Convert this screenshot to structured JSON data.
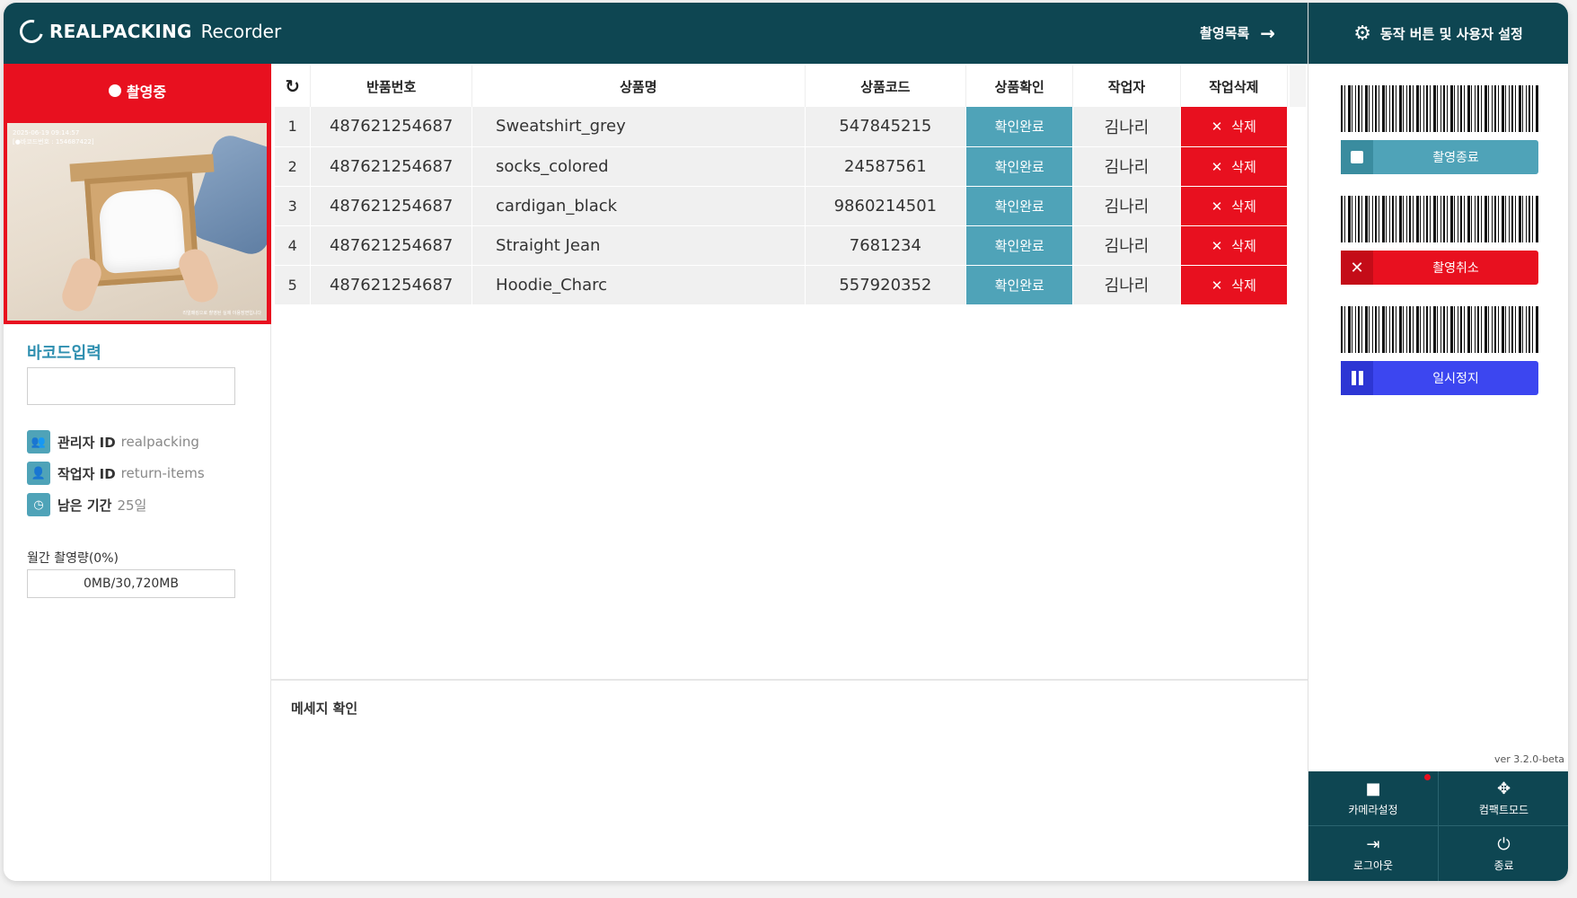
{
  "header": {
    "brand": "REALPACKING",
    "brand_sub": "Recorder",
    "rec_list_label": "촬영목록",
    "rec_list_arrow": "→"
  },
  "left": {
    "status_label": "촬영중",
    "cam_timestamp": "2025-06-19 09:14:57",
    "cam_barcode": "[●바코드번호 : 154687422]",
    "cam_footer": "리얼패킹으로 촬영된 실제 이용장면입니다",
    "barcode_label": "바코드입력",
    "barcode_value": "",
    "admin_key": "관리자 ID",
    "admin_val": "realpacking",
    "worker_key": "작업자 ID",
    "worker_val": "return-items",
    "remain_key": "남은 기간",
    "remain_val": "25일",
    "usage_label": "월간 촬영량(0%)",
    "usage_value": "0MB/30,720MB",
    "usage_percent": 0
  },
  "table": {
    "refresh_icon": "↻",
    "headers": {
      "ret": "반품번호",
      "name": "상품명",
      "code": "상품코드",
      "chk": "상품확인",
      "wrk": "작업자",
      "del": "작업삭제"
    },
    "rows": [
      {
        "num": "1",
        "ret": "487621254687",
        "name": "Sweatshirt_grey",
        "code": "547845215",
        "chk": "확인완료",
        "wrk": "김나리",
        "del": "삭제",
        "x": "✕"
      },
      {
        "num": "2",
        "ret": "487621254687",
        "name": "socks_colored",
        "code": "24587561",
        "chk": "확인완료",
        "wrk": "김나리",
        "del": "삭제",
        "x": "✕"
      },
      {
        "num": "3",
        "ret": "487621254687",
        "name": "cardigan_black",
        "code": "9860214501",
        "chk": "확인완료",
        "wrk": "김나리",
        "del": "삭제",
        "x": "✕"
      },
      {
        "num": "4",
        "ret": "487621254687",
        "name": "Straight Jean",
        "code": "7681234",
        "chk": "확인완료",
        "wrk": "김나리",
        "del": "삭제",
        "x": "✕"
      },
      {
        "num": "5",
        "ret": "487621254687",
        "name": "Hoodie_Charc",
        "code": "557920352",
        "chk": "확인완료",
        "wrk": "김나리",
        "del": "삭제",
        "x": "✕"
      }
    ]
  },
  "message": {
    "title": "메세지 확인"
  },
  "right": {
    "settings_label": "동작 버튼 및 사용자 설정",
    "gear_icon": "⚙",
    "stop_label": "촬영종료",
    "cancel_label": "촬영취소",
    "cancel_icon": "✕",
    "pause_label": "일시정지",
    "version": "ver 3.2.0-beta",
    "camera_label": "카메라설정",
    "camera_icon": "■",
    "compact_label": "컴팩트모드",
    "compact_icon": "✥",
    "logout_label": "로그아웃",
    "logout_icon": "⇥",
    "exit_label": "종료",
    "exit_icon": "⏻"
  },
  "colors": {
    "header_bg": "#0e4652",
    "accent_teal": "#4fa3b8",
    "danger_red": "#e8101f",
    "pause_blue": "#3c46f0"
  }
}
